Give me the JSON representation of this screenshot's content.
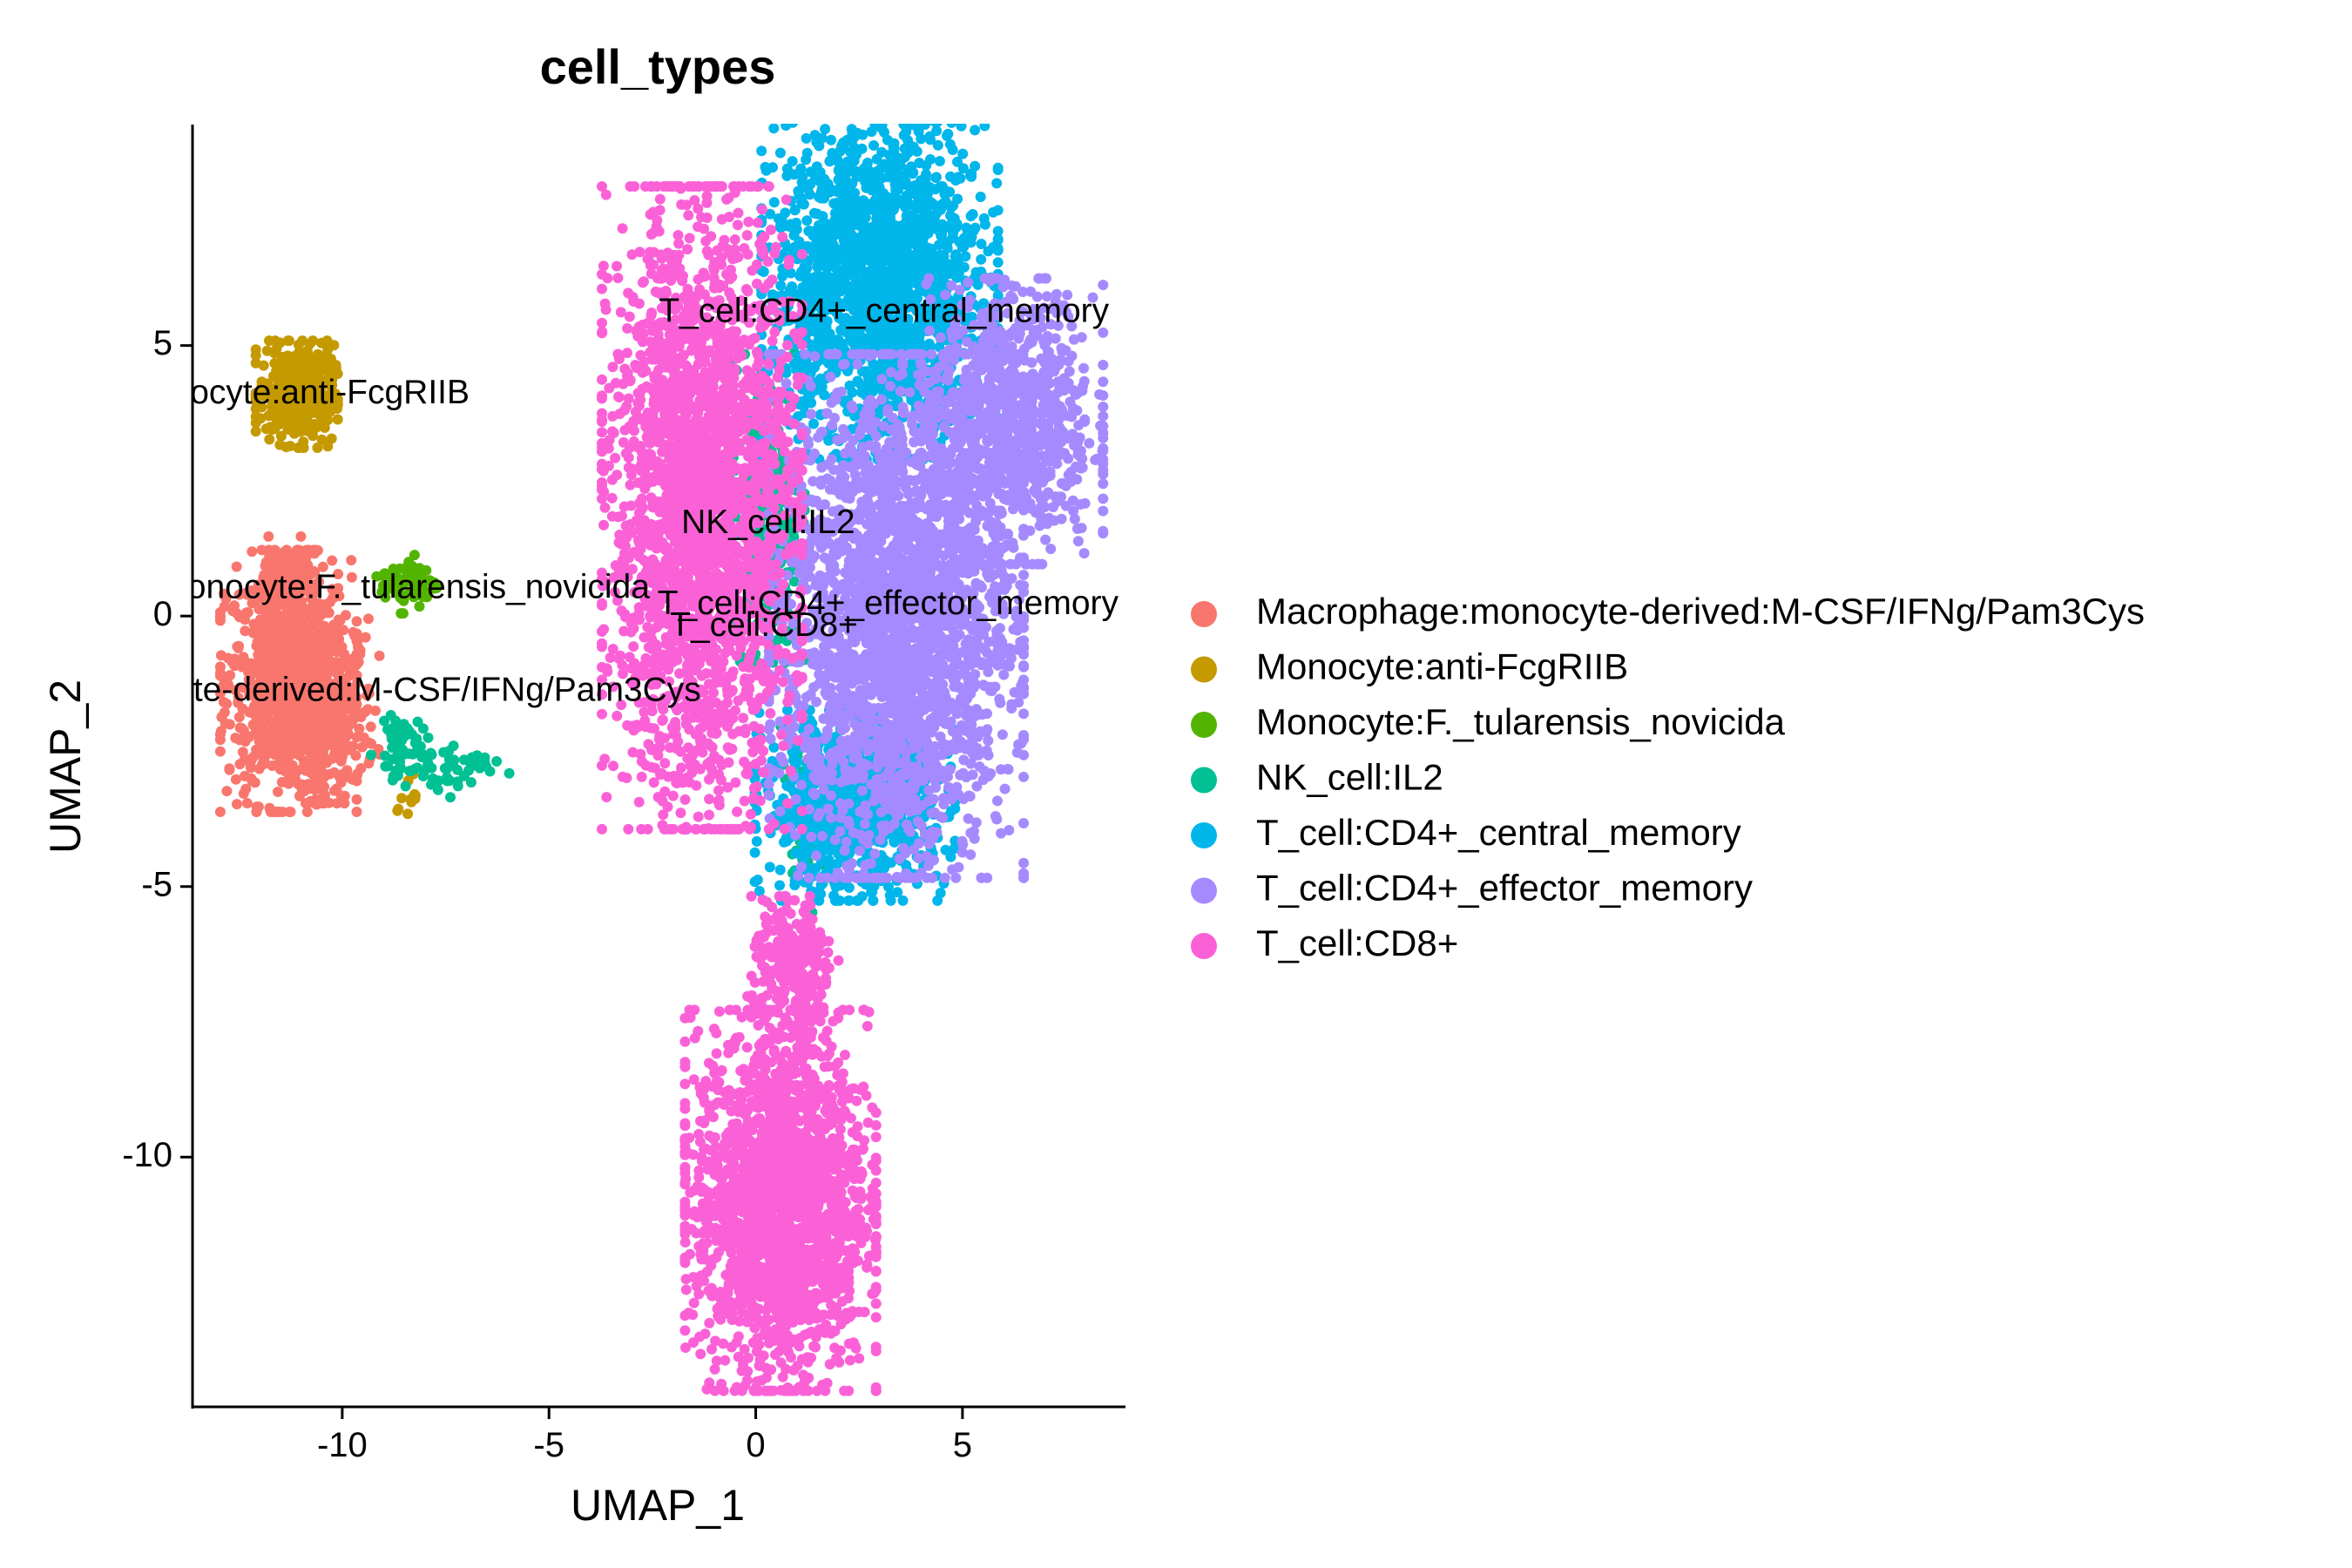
{
  "chart_data": {
    "type": "scatter",
    "title": "cell_types",
    "xlabel": "UMAP_1",
    "ylabel": "UMAP_2",
    "xlim": [
      -13.6,
      8.9
    ],
    "ylim": [
      -14.6,
      9.1
    ],
    "x_ticks": [
      -10,
      -5,
      0,
      5
    ],
    "x_tick_labels": [
      "-10",
      "-5",
      "0",
      "5"
    ],
    "y_ticks": [
      5,
      0,
      -5,
      -10
    ],
    "y_tick_labels": [
      "5",
      "0",
      "-5",
      "-10"
    ],
    "grid": false,
    "legend_position": "right",
    "series": [
      {
        "name": "Macrophage:monocyte-derived:M-CSF/IFNg/Pam3Cys",
        "color": "#F8766D",
        "label": "Macrophage:monocyte-derived:M-CSF/IFNg/Pam3Cys",
        "label_pos": [
          -11.3,
          -1.4
        ],
        "regions": [
          {
            "cx": -11.3,
            "cy": -1.2,
            "sx": 0.75,
            "sy": 1.1,
            "n": 900
          },
          {
            "cx": -10.2,
            "cy": -1.7,
            "sx": 0.5,
            "sy": 0.8,
            "n": 250
          },
          {
            "cx": -11.4,
            "cy": 0.7,
            "sx": 0.35,
            "sy": 0.35,
            "n": 80
          }
        ]
      },
      {
        "name": "Monocyte:anti-FcgRIIB",
        "color": "#C49A00",
        "label": "Monocyte:anti-FcgRIIB",
        "label_pos": [
          -11.1,
          4.1
        ],
        "regions": [
          {
            "cx": -11.1,
            "cy": 4.1,
            "sx": 0.45,
            "sy": 0.45,
            "n": 400
          },
          {
            "cx": -8.4,
            "cy": -3.3,
            "sx": 0.12,
            "sy": 0.2,
            "n": 12
          }
        ]
      },
      {
        "name": "Monocyte:F._tularensis_novicida",
        "color": "#53B400",
        "label": "Monocyte:F._tularensis_novicida",
        "label_pos": [
          -8.5,
          0.5
        ],
        "regions": [
          {
            "cx": -8.4,
            "cy": 0.6,
            "sx": 0.35,
            "sy": 0.25,
            "n": 70
          }
        ]
      },
      {
        "name": "NK_cell:IL2",
        "color": "#00C094",
        "label": "NK_cell:IL2",
        "label_pos": [
          0.3,
          1.7
        ],
        "regions": [
          {
            "cx": 0.3,
            "cy": 2.0,
            "sx": 0.4,
            "sy": 1.3,
            "n": 350
          },
          {
            "cx": 1.2,
            "cy": -3.8,
            "sx": 0.3,
            "sy": 0.8,
            "n": 60
          },
          {
            "cx": -7.5,
            "cy": -2.8,
            "sx": 0.7,
            "sy": 0.25,
            "n": 60
          },
          {
            "cx": -8.7,
            "cy": -2.3,
            "sx": 0.3,
            "sy": 0.3,
            "n": 40
          }
        ]
      },
      {
        "name": "T_cell:CD4+_central_memory",
        "color": "#00B6EB",
        "label": "T_cell:CD4+_central_memory",
        "label_pos": [
          3.1,
          5.6
        ],
        "regions": [
          {
            "cx": 3.0,
            "cy": 6.2,
            "sx": 1.3,
            "sy": 1.5,
            "n": 1800
          },
          {
            "cx": 2.4,
            "cy": -3.5,
            "sx": 1.1,
            "sy": 0.8,
            "n": 900
          }
        ]
      },
      {
        "name": "T_cell:CD4+_effector_memory",
        "color": "#A58AFF",
        "label": "T_cell:CD4+_effector_memory",
        "label_pos": [
          3.2,
          0.2
        ],
        "regions": [
          {
            "cx": 3.4,
            "cy": 0.0,
            "sx": 1.4,
            "sy": 2.2,
            "n": 2600
          },
          {
            "cx": 6.2,
            "cy": 3.6,
            "sx": 1.0,
            "sy": 1.2,
            "n": 900
          }
        ]
      },
      {
        "name": "T_cell:CD8+",
        "color": "#FB61D7",
        "label": "T_cell:CD8+",
        "label_pos": [
          0.2,
          -0.2
        ],
        "regions": [
          {
            "cx": -1.3,
            "cy": 2.0,
            "sx": 1.1,
            "sy": 2.7,
            "n": 2600
          },
          {
            "cx": 0.6,
            "cy": -10.8,
            "sx": 1.05,
            "sy": 1.6,
            "n": 2100
          },
          {
            "cx": 0.9,
            "cy": -6.5,
            "sx": 0.5,
            "sy": 0.6,
            "n": 250
          }
        ]
      }
    ]
  }
}
